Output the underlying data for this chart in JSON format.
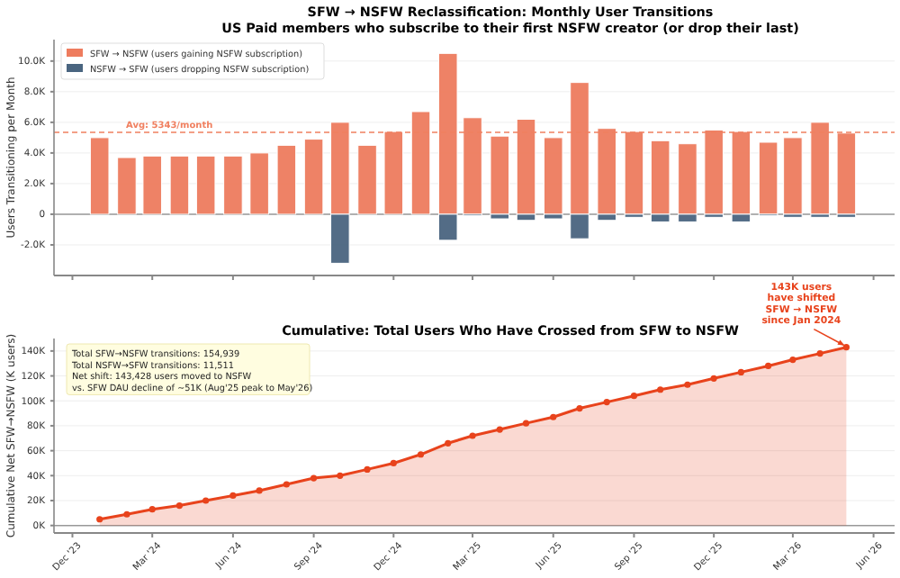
{
  "chart_data": [
    {
      "type": "bar",
      "title": "SFW → NSFW Reclassification: Monthly User Transitions\nUS Paid members who subscribe to their first NSFW creator (or drop their last)",
      "ylabel": "Users Transitioning per Month",
      "x": [
        "2024-01",
        "2024-02",
        "2024-03",
        "2024-04",
        "2024-05",
        "2024-06",
        "2024-07",
        "2024-08",
        "2024-09",
        "2024-10",
        "2024-11",
        "2024-12",
        "2025-01",
        "2025-02",
        "2025-03",
        "2025-04",
        "2025-05",
        "2025-06",
        "2025-07",
        "2025-08",
        "2025-09",
        "2025-10",
        "2025-11",
        "2025-12",
        "2026-01",
        "2026-02",
        "2026-03",
        "2026-04",
        "2026-05"
      ],
      "series": [
        {
          "name": "SFW → NSFW (users gaining NSFW subscription)",
          "color": "#ee7c5e",
          "values": [
            5000,
            3700,
            3800,
            3800,
            3800,
            3800,
            4000,
            4500,
            4900,
            6000,
            4500,
            5400,
            6700,
            10500,
            6300,
            5100,
            6200,
            5000,
            8600,
            5600,
            5400,
            4800,
            4600,
            5500,
            5400,
            4700,
            5000,
            6000,
            5300
          ]
        },
        {
          "name": "NSFW → SFW (users dropping NSFW subscription)",
          "color": "#4a6580",
          "values": [
            0,
            0,
            0,
            0,
            0,
            0,
            0,
            0,
            0,
            -3200,
            0,
            0,
            0,
            -1700,
            -100,
            -300,
            -400,
            -300,
            -1600,
            -400,
            -200,
            -500,
            -500,
            -200,
            -500,
            -100,
            -200,
            -200,
            -200
          ]
        }
      ],
      "xlim": [
        "2023-11-10",
        "2026-06-25"
      ],
      "xticks": [
        {
          "value": "2023-12",
          "label": null
        },
        {
          "value": "2024-03",
          "label": null
        },
        {
          "value": "2024-06",
          "label": null
        },
        {
          "value": "2024-09",
          "label": null
        },
        {
          "value": "2024-12",
          "label": null
        },
        {
          "value": "2025-03",
          "label": null
        },
        {
          "value": "2025-06",
          "label": null
        },
        {
          "value": "2025-09",
          "label": null
        },
        {
          "value": "2025-12",
          "label": null
        },
        {
          "value": "2026-03",
          "label": null
        },
        {
          "value": "2026-06",
          "label": null
        }
      ],
      "ylim": [
        -4000,
        11400
      ],
      "yticks": [
        {
          "value": -2000,
          "label": "-2.0K"
        },
        0,
        {
          "value": 2000,
          "label": "2.0K"
        },
        {
          "value": 4000,
          "label": "4.0K"
        },
        {
          "value": 6000,
          "label": "6.0K"
        },
        {
          "value": 8000,
          "label": "8.0K"
        },
        {
          "value": 10000,
          "label": "10.0K"
        }
      ],
      "ref_lines": [
        {
          "axis": "y",
          "value": 5343,
          "label": "Avg: 5343/month",
          "color": "#f08060",
          "line_style": "dashed"
        }
      ],
      "grid": "y",
      "legend": "top left",
      "tick_labels": "y"
    },
    {
      "type": "area",
      "title": "Cumulative: Total Users Who Have Crossed from SFW to NSFW",
      "ylabel": "Cumulative Net SFW→NSFW (K users)",
      "x": [
        "2024-01",
        "2024-02",
        "2024-03",
        "2024-04",
        "2024-05",
        "2024-06",
        "2024-07",
        "2024-08",
        "2024-09",
        "2024-10",
        "2024-11",
        "2024-12",
        "2025-01",
        "2025-02",
        "2025-03",
        "2025-04",
        "2025-05",
        "2025-06",
        "2025-07",
        "2025-08",
        "2025-09",
        "2025-10",
        "2025-11",
        "2025-12",
        "2026-01",
        "2026-02",
        "2026-03",
        "2026-04",
        "2026-05"
      ],
      "series": [
        {
          "color": "#e8431c",
          "values": [
            5,
            9,
            13,
            16,
            20,
            24,
            28,
            33,
            38,
            40,
            45,
            50,
            57,
            66,
            72,
            77,
            82,
            87,
            94,
            99,
            104,
            109,
            113,
            118,
            123,
            128,
            133,
            138,
            143
          ]
        }
      ],
      "xlim": [
        "2023-11-10",
        "2026-06-25"
      ],
      "xticks": [
        {
          "value": "2023-12",
          "label": "Dec '23"
        },
        {
          "value": "2024-03",
          "label": "Mar '24"
        },
        {
          "value": "2024-06",
          "label": "Jun '24"
        },
        {
          "value": "2024-09",
          "label": "Sep '24"
        },
        {
          "value": "2024-12",
          "label": "Dec '24"
        },
        {
          "value": "2025-03",
          "label": "Mar '25"
        },
        {
          "value": "2025-06",
          "label": "Jun '25"
        },
        {
          "value": "2025-09",
          "label": "Sep '25"
        },
        {
          "value": "2025-12",
          "label": "Dec '25"
        },
        {
          "value": "2026-03",
          "label": "Mar '26"
        },
        {
          "value": "2026-06",
          "label": "Jun '26"
        }
      ],
      "ylim": [
        -6,
        150
      ],
      "yticks": [
        {
          "value": 0,
          "label": "0K"
        },
        {
          "value": 20,
          "label": "20K"
        },
        {
          "value": 40,
          "label": "40K"
        },
        {
          "value": 60,
          "label": "60K"
        },
        {
          "value": 80,
          "label": "80K"
        },
        {
          "value": 100,
          "label": "100K"
        },
        {
          "value": 120,
          "label": "120K"
        },
        {
          "value": 140,
          "label": "140K"
        }
      ],
      "annotations": [
        "Total SFW→NSFW transitions: 154,939\nTotal NSFW→SFW transitions: 11,511\nNet shift: 143,428 users moved to NSFW\nvs. SFW DAU decline of ~51K (Aug'25 peak to May'26)",
        {
          "text": "143K users\nhave shifted\nSFW → NSFW\nsince Jan 2024",
          "x": "2026-05",
          "y": 143
        }
      ],
      "grid": "y",
      "marker": "circle"
    }
  ]
}
